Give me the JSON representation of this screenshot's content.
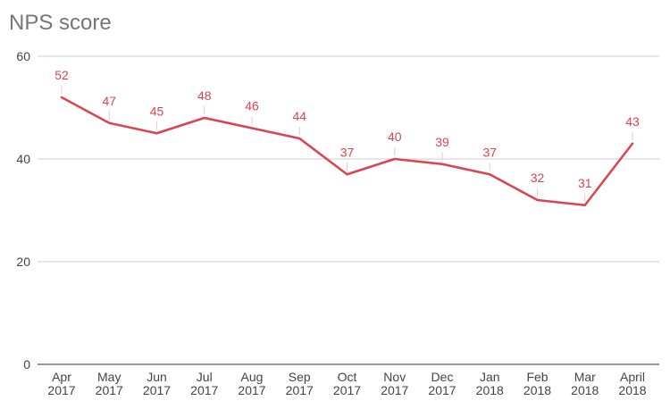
{
  "chart_data": {
    "type": "line",
    "title": "NPS score",
    "xlabel": "",
    "ylabel": "",
    "categories": [
      [
        "Apr",
        "2017"
      ],
      [
        "May",
        "2017"
      ],
      [
        "Jun",
        "2017"
      ],
      [
        "Jul",
        "2017"
      ],
      [
        "Aug",
        "2017"
      ],
      [
        "Sep",
        "2017"
      ],
      [
        "Oct",
        "2017"
      ],
      [
        "Nov",
        "2017"
      ],
      [
        "Dec",
        "2017"
      ],
      [
        "Jan",
        "2018"
      ],
      [
        "Feb",
        "2018"
      ],
      [
        "Mar",
        "2018"
      ],
      [
        "April",
        "2018"
      ]
    ],
    "series": [
      {
        "values": [
          52,
          47,
          45,
          48,
          46,
          44,
          37,
          40,
          39,
          37,
          32,
          31,
          43
        ]
      }
    ],
    "ylim": [
      0,
      60
    ],
    "yticks": [
      0,
      20,
      40,
      60
    ],
    "grid": true,
    "data_labels": true,
    "colors": {
      "line": "#db4350",
      "data_label": "#db4350",
      "grid": "#cccccc",
      "axis": "#333333",
      "title": "#757575",
      "tick": "#444444"
    }
  }
}
